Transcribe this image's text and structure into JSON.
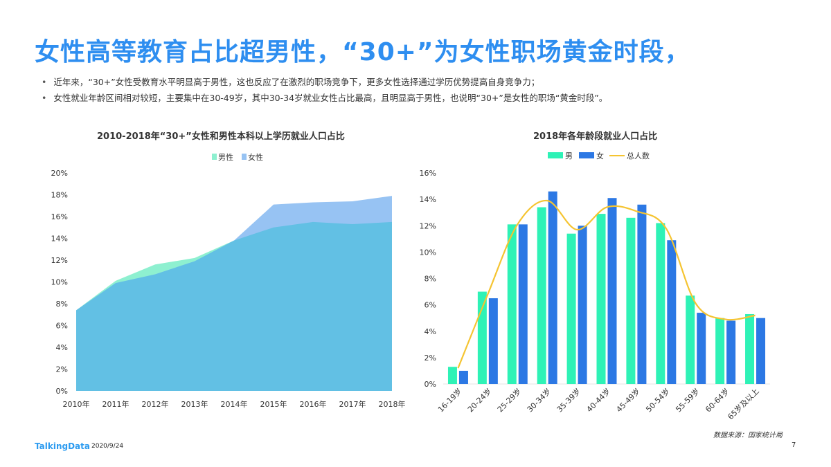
{
  "title": "女性高等教育占比超男性，“30+”为女性职场黄金时段，",
  "bullets": [
    "近年来，“30+”女性受教育水平明显高于男性，这也反应了在激烈的职场竞争下，更多女性选择通过学历优势提高自身竞争力；",
    "女性就业年龄区间相对较短，主要集中在30-49岁，其中30-34岁就业女性占比最高，且明显高于男性，也说明“30+”是女性的职场“黄金时段”。"
  ],
  "footer": {
    "logo": "TalkingData",
    "date": "2020/9/24",
    "page": "7",
    "source": "数据来源：国家统计局"
  },
  "colors": {
    "title": "#2e8ef0",
    "male_area": "#8ef0d0",
    "female_area": "#97c3f3",
    "overlap": "#62c0e4",
    "male_bar": "#2ef2b6",
    "female_bar": "#2c78e4",
    "total_line": "#f5c431"
  },
  "chart_data": [
    {
      "type": "area",
      "title": "2010-2018年“30+”女性和男性本科以上学历就业人口占比",
      "categories": [
        "2010年",
        "2011年",
        "2012年",
        "2013年",
        "2014年",
        "2015年",
        "2016年",
        "2017年",
        "2018年"
      ],
      "series": [
        {
          "name": "男性",
          "values": [
            7.4,
            10.1,
            11.6,
            12.2,
            13.8,
            15.0,
            15.5,
            15.3,
            15.5
          ]
        },
        {
          "name": "女性",
          "values": [
            7.4,
            9.9,
            10.7,
            11.9,
            13.8,
            17.1,
            17.3,
            17.4,
            17.9
          ]
        }
      ],
      "ylim": [
        0,
        20
      ],
      "yticks": [
        "0%",
        "2%",
        "4%",
        "6%",
        "8%",
        "10%",
        "12%",
        "14%",
        "16%",
        "18%",
        "20%"
      ],
      "legend": "top",
      "grid": false
    },
    {
      "type": "bar",
      "title": "2018年各年龄段就业人口占比",
      "categories": [
        "16-19岁",
        "20-24岁",
        "25-29岁",
        "30-34岁",
        "35-39岁",
        "40-44岁",
        "45-49岁",
        "50-54岁",
        "55-59岁",
        "60-64岁",
        "65岁及以上"
      ],
      "series": [
        {
          "name": "男",
          "type": "bar",
          "values": [
            1.3,
            7.0,
            12.1,
            13.4,
            11.4,
            12.9,
            12.6,
            12.2,
            6.7,
            5.0,
            5.3
          ]
        },
        {
          "name": "女",
          "type": "bar",
          "values": [
            1.0,
            6.5,
            12.1,
            14.6,
            12.0,
            14.1,
            13.6,
            10.9,
            5.4,
            4.8,
            5.0
          ]
        },
        {
          "name": "总人数",
          "type": "line",
          "values": [
            1.2,
            6.8,
            12.1,
            13.9,
            11.7,
            13.4,
            13.1,
            11.8,
            6.1,
            4.9,
            5.2
          ]
        }
      ],
      "ylim": [
        0,
        16
      ],
      "yticks": [
        "0%",
        "2%",
        "4%",
        "6%",
        "8%",
        "10%",
        "12%",
        "14%",
        "16%"
      ],
      "legend": "top",
      "grid": false
    }
  ]
}
